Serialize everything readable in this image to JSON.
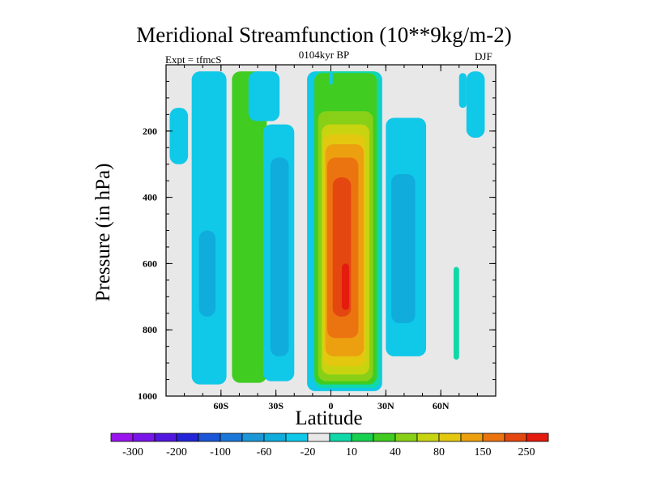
{
  "title": "Meridional Streamfunction (10**9kg/m-2)",
  "left_label": "Expt = tfmcS",
  "subtitle": "0104kyr BP",
  "right_label": "DJF",
  "chart_data": {
    "type": "heatmap",
    "title": "Meridional Streamfunction (10**9kg/m-2)",
    "xlabel": "Latitude",
    "ylabel": "Pressure (in hPa)",
    "xlim": [
      -90,
      90
    ],
    "ylim": [
      1000,
      0
    ],
    "y_reversed": true,
    "x_ticks": [
      {
        "value": -60,
        "label": "60S"
      },
      {
        "value": -30,
        "label": "30S"
      },
      {
        "value": 0,
        "label": "0"
      },
      {
        "value": 30,
        "label": "30N"
      },
      {
        "value": 60,
        "label": "60N"
      }
    ],
    "y_ticks": [
      {
        "value": 200,
        "label": "200"
      },
      {
        "value": 400,
        "label": "400"
      },
      {
        "value": 600,
        "label": "600"
      },
      {
        "value": 800,
        "label": "800"
      },
      {
        "value": 1000,
        "label": "1000"
      }
    ],
    "background_color": "#e8e8e8",
    "colorbar": {
      "labels": [
        "-300",
        "-200",
        "-100",
        "-60",
        "-20",
        "10",
        "40",
        "80",
        "150",
        "250"
      ],
      "colors": [
        "#9a14ee",
        "#7a16ea",
        "#5218e0",
        "#2424d8",
        "#1c56d8",
        "#1c78d8",
        "#1c98d8",
        "#10acdc",
        "#10c8e8",
        "#e8e8e8",
        "#10d8a8",
        "#18d050",
        "#40cc20",
        "#88d018",
        "#c8d410",
        "#e4c810",
        "#eca010",
        "#ec7410",
        "#e44810",
        "#e41c10"
      ]
    },
    "regions": [
      {
        "color": "#10c8e8",
        "lat": [
          -76,
          -57
        ],
        "p_top": 20,
        "p_bottom": 965,
        "rounded": true
      },
      {
        "color": "#10acdc",
        "lat": [
          -72,
          -63
        ],
        "p_top": 500,
        "p_bottom": 760,
        "rounded": true
      },
      {
        "color": "#40cc20",
        "lat": [
          -54,
          -35
        ],
        "p_top": 20,
        "p_bottom": 960,
        "rounded": true
      },
      {
        "color": "#10c8e8",
        "lat": [
          -37,
          -20
        ],
        "p_top": 180,
        "p_bottom": 955,
        "rounded": true
      },
      {
        "color": "#10acdc",
        "lat": [
          -33,
          -23
        ],
        "p_top": 280,
        "p_bottom": 880,
        "rounded": true
      },
      {
        "color": "#10c8e8",
        "lat": [
          -45,
          -28
        ],
        "p_top": 20,
        "p_bottom": 170,
        "rounded": true
      },
      {
        "color": "#10c8e8",
        "lat": [
          -88,
          -78
        ],
        "p_top": 130,
        "p_bottom": 300,
        "rounded": true
      },
      {
        "color": "#10c8e8",
        "lat": [
          -13,
          28
        ],
        "p_top": 20,
        "p_bottom": 985,
        "rounded": true
      },
      {
        "color": "#10d8a8",
        "lat": [
          -9,
          27
        ],
        "p_top": 20,
        "p_bottom": 975,
        "rounded": true
      },
      {
        "color": "#40cc20",
        "lat": [
          -9,
          25
        ],
        "p_top": 25,
        "p_bottom": 965,
        "rounded": true
      },
      {
        "color": "#88d018",
        "lat": [
          -7,
          23
        ],
        "p_top": 140,
        "p_bottom": 955,
        "rounded": true
      },
      {
        "color": "#c8d410",
        "lat": [
          -5,
          21
        ],
        "p_top": 180,
        "p_bottom": 935,
        "rounded": true
      },
      {
        "color": "#e4c810",
        "lat": [
          -4,
          19
        ],
        "p_top": 210,
        "p_bottom": 910,
        "rounded": true
      },
      {
        "color": "#eca010",
        "lat": [
          -3,
          18
        ],
        "p_top": 240,
        "p_bottom": 880,
        "rounded": true
      },
      {
        "color": "#ec7410",
        "lat": [
          -2,
          15
        ],
        "p_top": 280,
        "p_bottom": 825,
        "rounded": true
      },
      {
        "color": "#e44810",
        "lat": [
          1,
          11
        ],
        "p_top": 340,
        "p_bottom": 760,
        "rounded": true
      },
      {
        "color": "#e41c10",
        "lat": [
          6,
          10
        ],
        "p_top": 600,
        "p_bottom": 740,
        "rounded": true
      },
      {
        "color": "#10c8e8",
        "lat": [
          30,
          52
        ],
        "p_top": 160,
        "p_bottom": 880,
        "rounded": true
      },
      {
        "color": "#10acdc",
        "lat": [
          33,
          46
        ],
        "p_top": 330,
        "p_bottom": 780,
        "rounded": true
      },
      {
        "color": "#10c8e8",
        "lat": [
          74,
          84
        ],
        "p_top": 20,
        "p_bottom": 220,
        "rounded": true
      },
      {
        "color": "#10c8e8",
        "lat": [
          70,
          74
        ],
        "p_top": 25,
        "p_bottom": 130,
        "rounded": true
      },
      {
        "color": "#10d8a8",
        "lat": [
          67,
          70
        ],
        "p_top": 610,
        "p_bottom": 890,
        "rounded": true
      },
      {
        "color": "#10c8e8",
        "lat": [
          -1,
          1
        ],
        "p_top": 20,
        "p_bottom": 60,
        "rounded": true
      }
    ]
  }
}
